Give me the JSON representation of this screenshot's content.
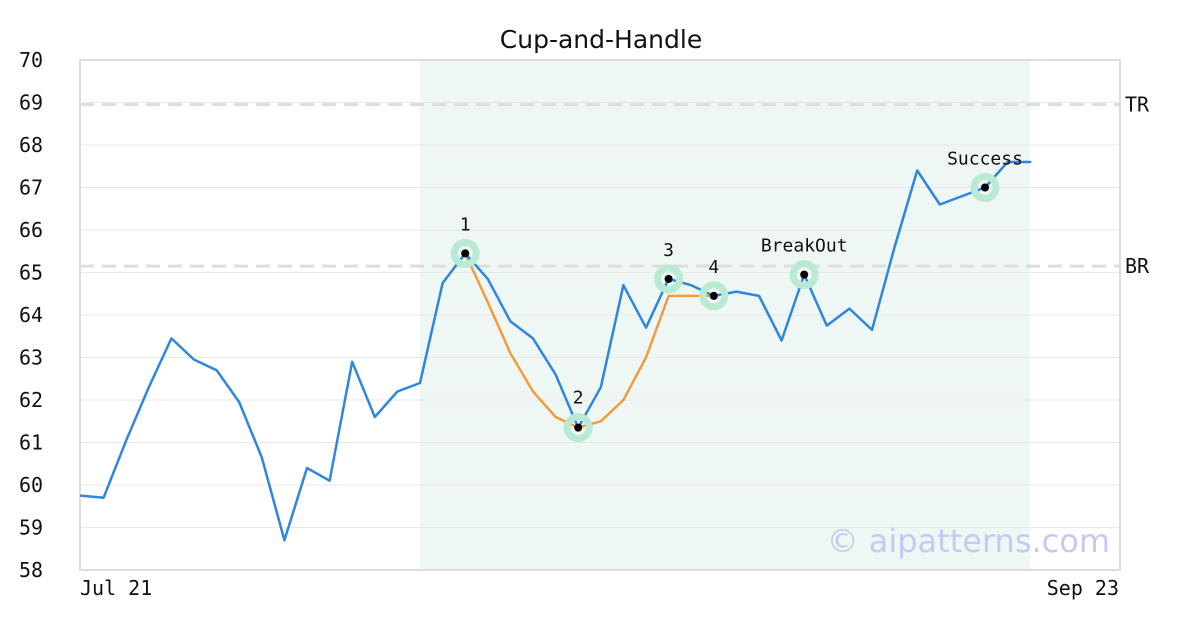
{
  "chart_data": {
    "type": "line",
    "title": "Cup-and-Handle",
    "ylim": [
      58,
      70
    ],
    "yticks": [
      "58",
      "59",
      "60",
      "61",
      "62",
      "63",
      "64",
      "65",
      "66",
      "67",
      "68",
      "69",
      "70"
    ],
    "xtick_labels": [
      "Jul 21",
      "Sep 23"
    ],
    "grid": true,
    "series": [
      {
        "color": "#2e86de",
        "values": [
          59.75,
          59.7,
          61.05,
          62.3,
          63.45,
          62.95,
          62.7,
          61.95,
          60.65,
          58.7,
          60.4,
          60.1,
          62.9,
          61.6,
          62.2,
          62.4,
          64.75,
          65.45,
          64.85,
          63.85,
          63.45,
          62.6,
          61.35,
          62.3,
          64.7,
          63.7,
          64.85,
          64.7,
          64.45,
          64.55,
          64.45,
          63.4,
          64.95,
          63.75,
          64.15,
          63.65,
          65.6,
          67.4,
          66.6,
          66.8,
          67.0,
          67.6,
          67.6
        ]
      },
      {
        "color": "#f39c3d",
        "start_index": 17,
        "values": [
          65.45,
          64.3,
          63.1,
          62.2,
          61.6,
          61.35,
          61.5,
          62.0,
          63.0,
          64.45,
          64.45,
          64.45
        ]
      }
    ],
    "shaded_region": {
      "start_index": 15,
      "end_index": 42,
      "color": "#eef7f3"
    },
    "levels": [
      {
        "label": "TR",
        "value": 68.95
      },
      {
        "label": "BR",
        "value": 65.15
      }
    ],
    "annotations": [
      {
        "label": "1",
        "index": 17,
        "value": 65.45
      },
      {
        "label": "2",
        "index": 22,
        "value": 61.35
      },
      {
        "label": "3",
        "index": 26,
        "value": 64.85
      },
      {
        "label": "4",
        "index": 28,
        "value": 64.45
      },
      {
        "label": "BreakOut",
        "index": 32,
        "value": 64.95
      },
      {
        "label": "Success",
        "index": 40,
        "value": 67.0
      }
    ],
    "watermark": "© aipatterns.com",
    "colors": {
      "marker_halo": "#b9ead4",
      "marker_dot": "#000000",
      "level_line": "#dddddd",
      "grid": "#e8e8e8",
      "frame": "#dddddd",
      "watermark": "#c8c8f5"
    }
  }
}
